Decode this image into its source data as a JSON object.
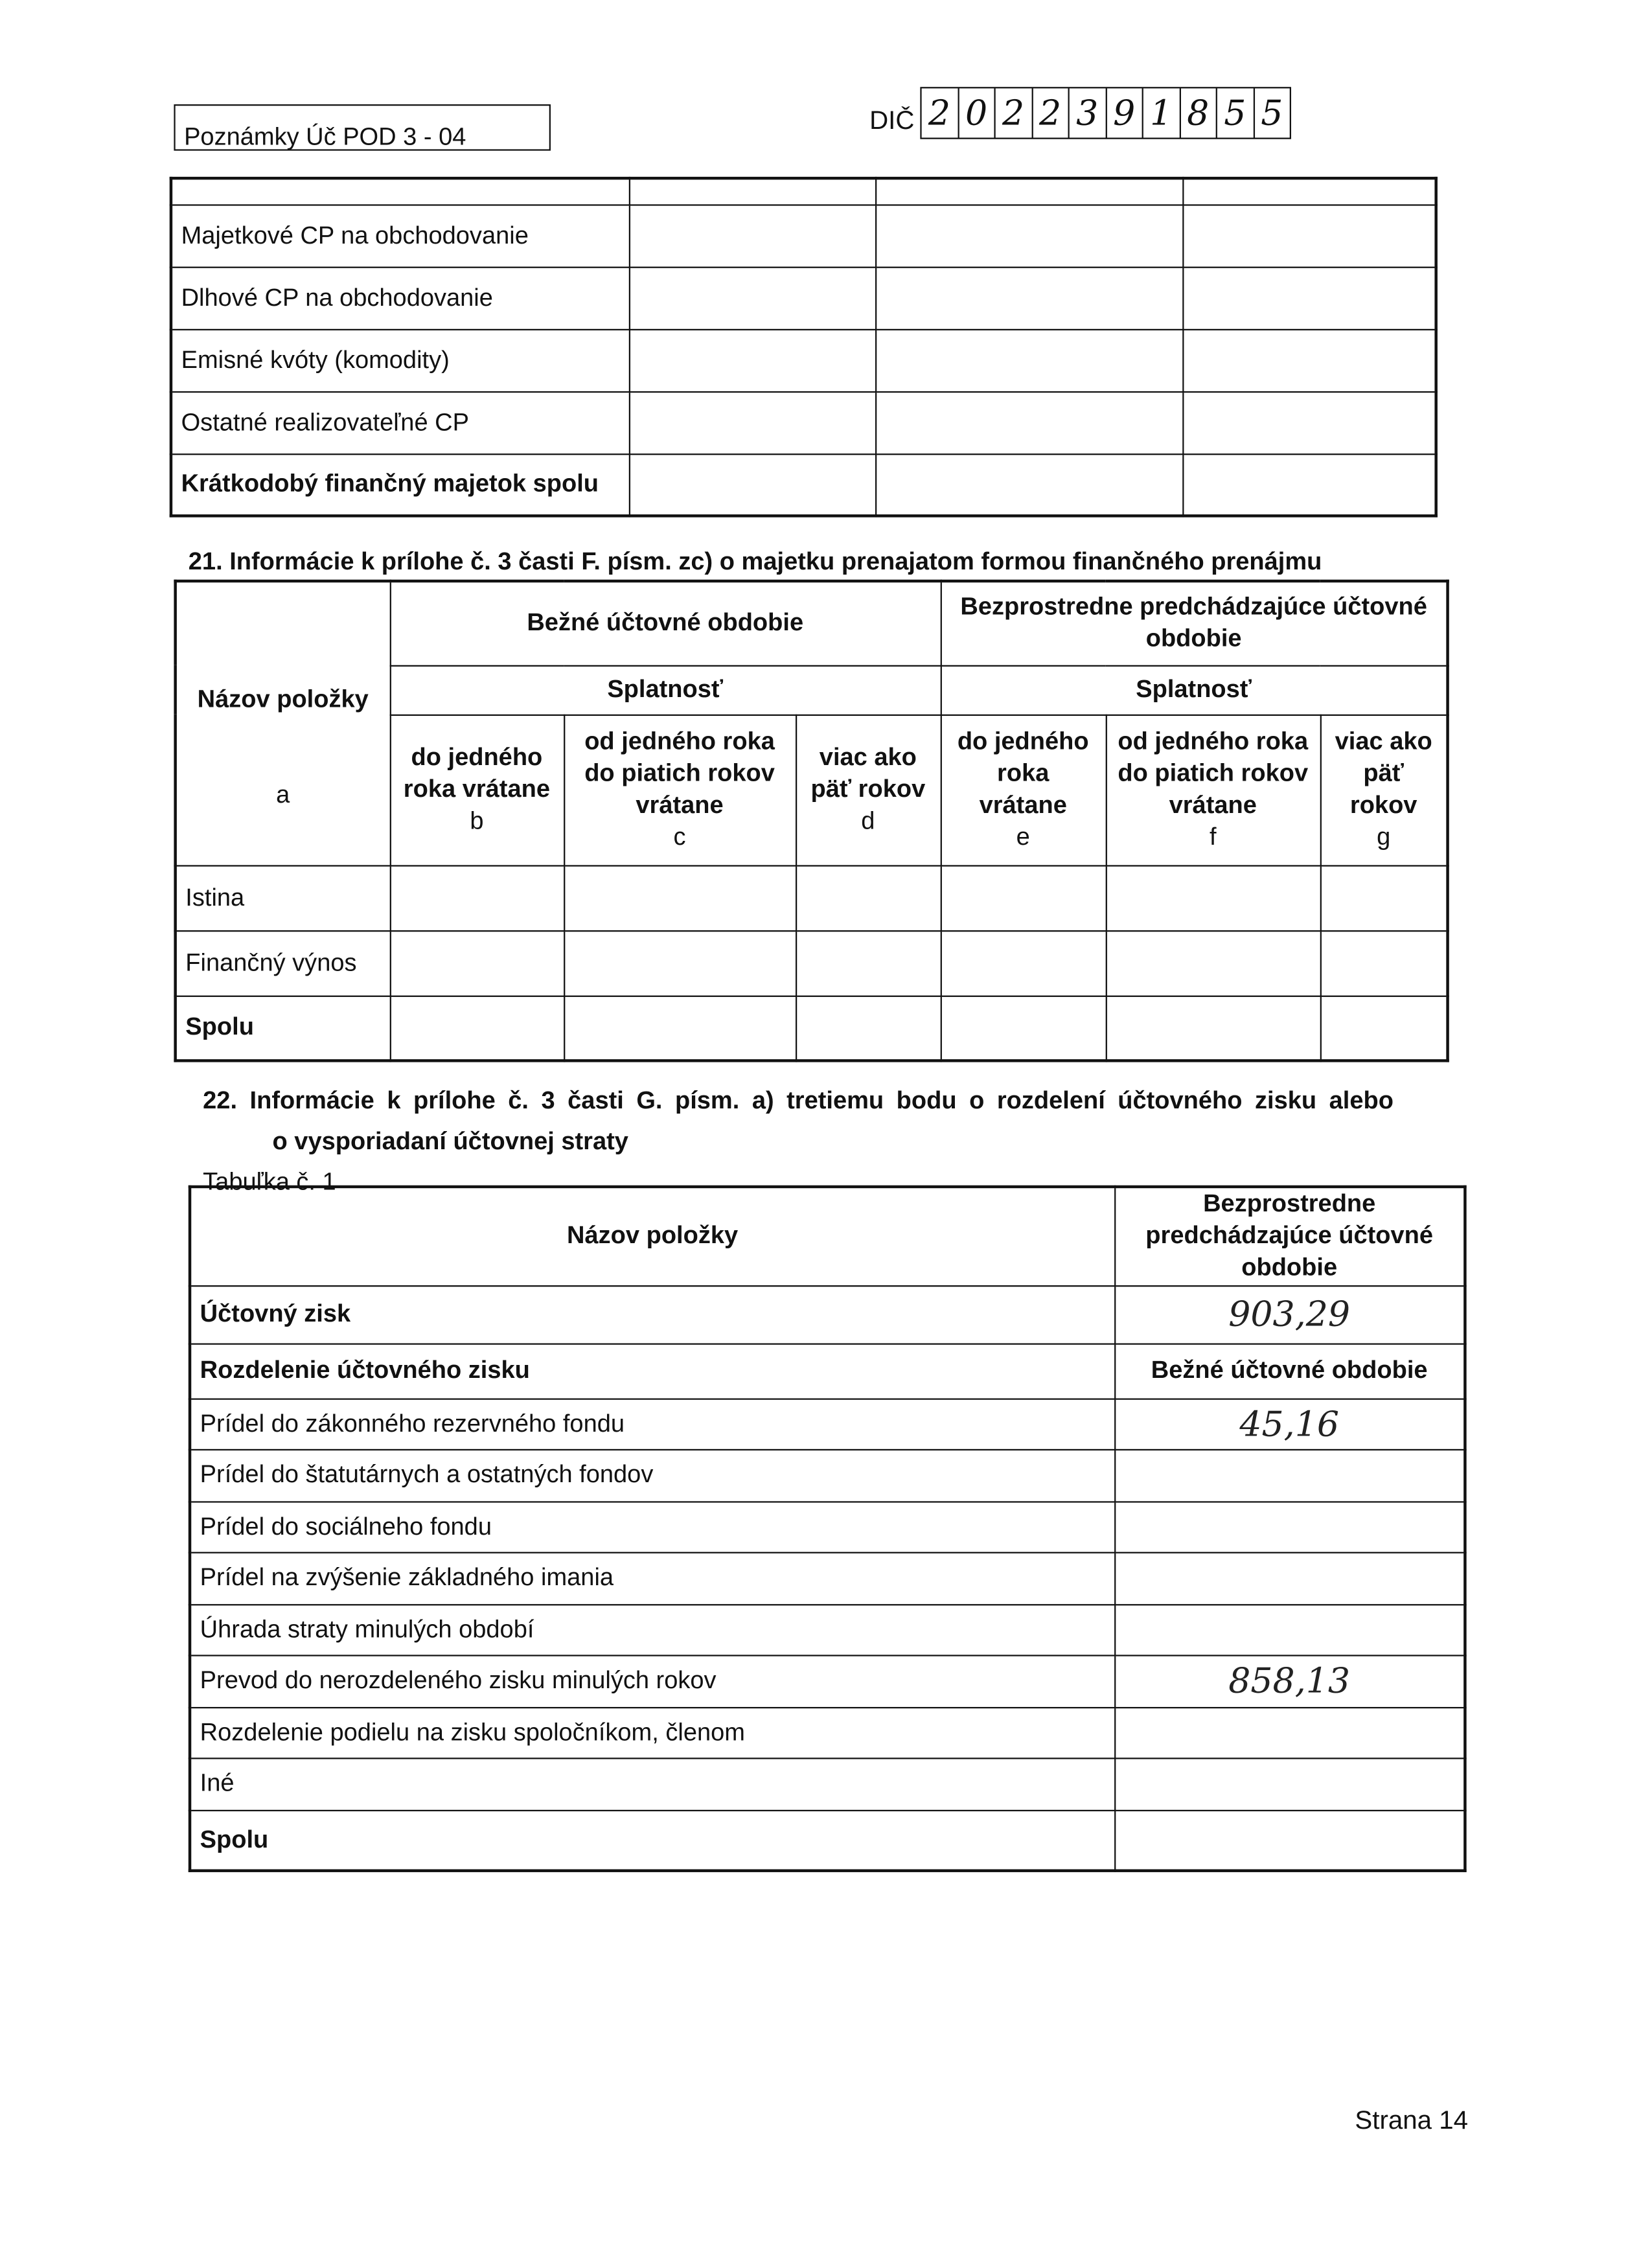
{
  "header": {
    "form_label": "Poznámky Úč POD 3 - 04",
    "dic_label": "DIČ",
    "dic_digits": [
      "2",
      "0",
      "2",
      "2",
      "3",
      "9",
      "1",
      "8",
      "5",
      "5"
    ]
  },
  "table1": {
    "rows": [
      {
        "label": "Majetkové CP na obchodovanie",
        "bold": false
      },
      {
        "label": "Dlhové CP na obchodovanie",
        "bold": false
      },
      {
        "label": "Emisné kvóty (komodity)",
        "bold": false
      },
      {
        "label": "Ostatné realizovateľné CP",
        "bold": false
      },
      {
        "label": "Krátkodobý finančný majetok spolu",
        "bold": true
      }
    ]
  },
  "section21": {
    "title": "21. Informácie k prílohe č. 3 časti F. písm. zc) o majetku prenajatom formou finančného prenájmu",
    "col_name": "Názov položky",
    "col_name_letter": "a",
    "current": "Bežné účtovné obdobie",
    "previous": "Bezprostredne predchádzajúce účtovné obdobie",
    "maturity": "Splatnosť",
    "subcols": [
      {
        "label": "do jedného roka vrátane",
        "letter": "b"
      },
      {
        "label": "od jedného roka do piatich rokov vrátane",
        "letter": "c"
      },
      {
        "label": "viac ako päť rokov",
        "letter": "d"
      },
      {
        "label": "do jedného roka vrátane",
        "letter": "e"
      },
      {
        "label": "od jedného roka do piatich rokov vrátane",
        "letter": "f"
      },
      {
        "label": "viac ako päť rokov",
        "letter": "g"
      }
    ],
    "rows": [
      "Istina",
      "Finančný výnos",
      "Spolu"
    ]
  },
  "section22": {
    "title_line1": "22. Informácie k prílohe č. 3 časti G. písm. a) tretiemu bodu o rozdelení účtovného zisku alebo",
    "title_line2": "o vysporiadaní účtovnej straty",
    "table_label": "Tabuľka č. 1",
    "col_name": "Názov položky",
    "col_previous": "Bezprostredne predchádzajúce účtovné obdobie",
    "col_current": "Bežné účtovné obdobie",
    "profit_label": "Účtovný zisk",
    "profit_value": "903,29",
    "distribution_label": "Rozdelenie účtovného zisku",
    "rows": [
      {
        "label": "Prídel do zákonného rezervného fondu",
        "value": "45,16"
      },
      {
        "label": "Prídel do štatutárnych a ostatných fondov",
        "value": ""
      },
      {
        "label": "Prídel do sociálneho fondu",
        "value": ""
      },
      {
        "label": "Prídel na zvýšenie základného imania",
        "value": ""
      },
      {
        "label": "Úhrada straty minulých období",
        "value": ""
      },
      {
        "label": "Prevod do nerozdeleného zisku minulých rokov",
        "value": "858,13"
      },
      {
        "label": "Rozdelenie podielu na zisku spoločníkom, členom",
        "value": ""
      },
      {
        "label": "Iné",
        "value": ""
      },
      {
        "label": "Spolu",
        "value": ""
      }
    ]
  },
  "footer": {
    "page": "Strana 14"
  }
}
